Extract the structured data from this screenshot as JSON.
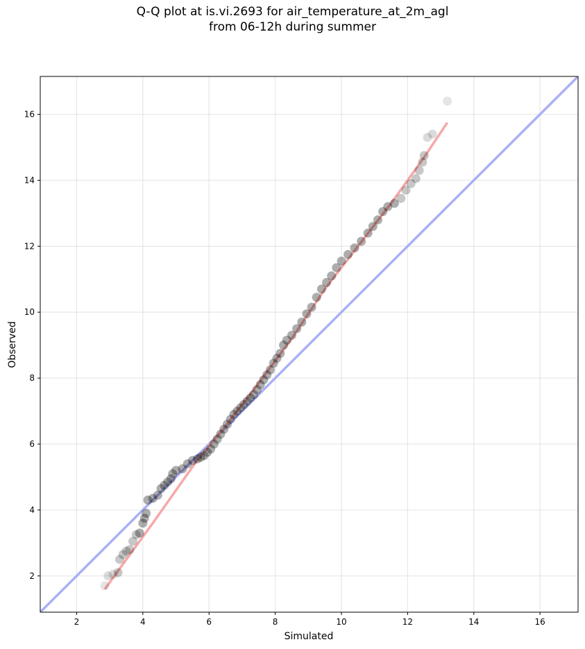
{
  "chart_data": {
    "type": "scatter",
    "title_line1": "Q-Q plot at is.vi.2693 for air_temperature_at_2m_agl",
    "title_line2": "from 06-12h during summer",
    "xlabel": "Simulated",
    "ylabel": "Observed",
    "xlim": [
      0.9,
      17.15
    ],
    "ylim": [
      0.9,
      17.15
    ],
    "xticks": [
      2,
      4,
      6,
      8,
      10,
      12,
      14,
      16
    ],
    "yticks": [
      2,
      4,
      6,
      8,
      10,
      12,
      14,
      16
    ],
    "grid": true,
    "identity_line": {
      "color": "#aab0f5",
      "from": [
        0.9,
        0.9
      ],
      "to": [
        17.15,
        17.15
      ]
    },
    "fit_line": {
      "color": "#f6a8a8",
      "points": [
        [
          2.85,
          1.6
        ],
        [
          4.3,
          3.6
        ],
        [
          5.6,
          5.45
        ],
        [
          6.5,
          6.55
        ],
        [
          7.5,
          7.85
        ],
        [
          8.5,
          9.2
        ],
        [
          9.5,
          10.7
        ],
        [
          10.5,
          12.0
        ],
        [
          11.5,
          13.3
        ],
        [
          12.5,
          14.7
        ],
        [
          13.2,
          15.75
        ]
      ]
    },
    "marker_color": "#000000",
    "quantile_points": [
      [
        2.85,
        1.7
      ],
      [
        2.95,
        2.0
      ],
      [
        3.1,
        2.05
      ],
      [
        3.25,
        2.1
      ],
      [
        3.3,
        2.5
      ],
      [
        3.4,
        2.65
      ],
      [
        3.5,
        2.75
      ],
      [
        3.6,
        2.8
      ],
      [
        3.7,
        3.05
      ],
      [
        3.8,
        3.25
      ],
      [
        3.9,
        3.3
      ],
      [
        4.0,
        3.6
      ],
      [
        4.05,
        3.75
      ],
      [
        4.1,
        3.9
      ],
      [
        4.15,
        4.3
      ],
      [
        4.3,
        4.35
      ],
      [
        4.45,
        4.45
      ],
      [
        4.55,
        4.65
      ],
      [
        4.65,
        4.75
      ],
      [
        4.75,
        4.85
      ],
      [
        4.85,
        4.95
      ],
      [
        4.9,
        5.1
      ],
      [
        5.0,
        5.2
      ],
      [
        5.2,
        5.25
      ],
      [
        5.35,
        5.4
      ],
      [
        5.5,
        5.5
      ],
      [
        5.65,
        5.55
      ],
      [
        5.75,
        5.6
      ],
      [
        5.85,
        5.65
      ],
      [
        5.95,
        5.75
      ],
      [
        6.05,
        5.85
      ],
      [
        6.15,
        6.0
      ],
      [
        6.25,
        6.15
      ],
      [
        6.35,
        6.3
      ],
      [
        6.45,
        6.45
      ],
      [
        6.55,
        6.6
      ],
      [
        6.65,
        6.75
      ],
      [
        6.75,
        6.9
      ],
      [
        6.85,
        7.0
      ],
      [
        6.95,
        7.1
      ],
      [
        7.05,
        7.2
      ],
      [
        7.15,
        7.3
      ],
      [
        7.25,
        7.4
      ],
      [
        7.35,
        7.5
      ],
      [
        7.45,
        7.65
      ],
      [
        7.55,
        7.8
      ],
      [
        7.65,
        7.95
      ],
      [
        7.75,
        8.1
      ],
      [
        7.85,
        8.25
      ],
      [
        7.95,
        8.45
      ],
      [
        8.05,
        8.6
      ],
      [
        8.15,
        8.75
      ],
      [
        8.25,
        9.0
      ],
      [
        8.35,
        9.15
      ],
      [
        8.5,
        9.3
      ],
      [
        8.65,
        9.5
      ],
      [
        8.8,
        9.7
      ],
      [
        8.95,
        9.95
      ],
      [
        9.1,
        10.15
      ],
      [
        9.25,
        10.45
      ],
      [
        9.4,
        10.7
      ],
      [
        9.55,
        10.9
      ],
      [
        9.7,
        11.1
      ],
      [
        9.85,
        11.35
      ],
      [
        10.0,
        11.55
      ],
      [
        10.2,
        11.75
      ],
      [
        10.4,
        11.95
      ],
      [
        10.6,
        12.15
      ],
      [
        10.8,
        12.4
      ],
      [
        10.95,
        12.6
      ],
      [
        11.1,
        12.8
      ],
      [
        11.25,
        13.05
      ],
      [
        11.4,
        13.2
      ],
      [
        11.6,
        13.3
      ],
      [
        11.8,
        13.45
      ],
      [
        11.95,
        13.7
      ],
      [
        12.1,
        13.9
      ],
      [
        12.25,
        14.05
      ],
      [
        12.35,
        14.3
      ],
      [
        12.45,
        14.55
      ],
      [
        12.5,
        14.75
      ],
      [
        12.6,
        15.3
      ],
      [
        12.75,
        15.4
      ],
      [
        13.2,
        16.4
      ]
    ]
  }
}
